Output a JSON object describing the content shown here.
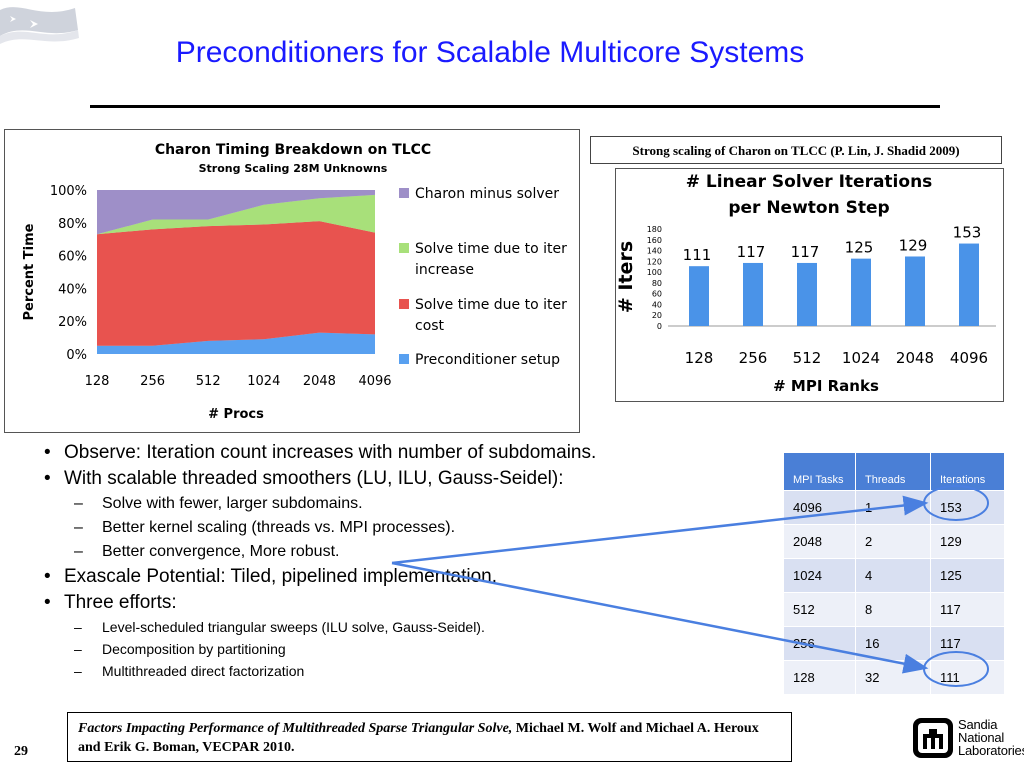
{
  "slide": {
    "title": "Preconditioners for Scalable Multicore Systems",
    "page_number": "29"
  },
  "colors": {
    "title": "#1a1aff",
    "charon_minus_solver": "#9e8fc8",
    "solve_iter_increase": "#a8e07a",
    "solve_iter_cost": "#e8534f",
    "preconditioner_setup": "#58a0f0",
    "bar_blue": "#4a93e8",
    "table_header": "#4a7fd6",
    "arrow": "#4a7fe0"
  },
  "strong_scaling_caption": "Strong scaling of Charon on TLCC (P. Lin, J. Shadid 2009)",
  "chart_data": [
    {
      "type": "area",
      "title": "Charon Timing Breakdown on TLCC",
      "subtitle": "Strong Scaling 28M Unknowns",
      "xlabel": "# Procs",
      "ylabel": "Percent Time",
      "categories": [
        "128",
        "256",
        "512",
        "1024",
        "2048",
        "4096"
      ],
      "yticks": [
        "0%",
        "20%",
        "40%",
        "60%",
        "80%",
        "100%"
      ],
      "ylim": [
        0,
        100
      ],
      "stacked": true,
      "series": [
        {
          "name": "Preconditioner setup",
          "values": [
            5,
            5,
            8,
            9,
            13,
            12
          ]
        },
        {
          "name": "Solve time due to iter cost",
          "values": [
            68,
            71,
            70,
            70,
            68,
            62
          ]
        },
        {
          "name": "Solve time due to iter increase",
          "values": [
            0,
            6,
            4,
            12,
            14,
            23
          ]
        },
        {
          "name": "Charon minus solver",
          "values": [
            27,
            18,
            18,
            9,
            5,
            3
          ]
        }
      ],
      "legend": "right"
    },
    {
      "type": "bar",
      "title_line1": "# Linear Solver Iterations",
      "title_line2": "per Newton Step",
      "xlabel": "# MPI Ranks",
      "ylabel": "# Iters",
      "categories": [
        "128",
        "256",
        "512",
        "1024",
        "2048",
        "4096"
      ],
      "values": [
        111,
        117,
        117,
        125,
        129,
        153
      ],
      "yticks": [
        "0",
        "20",
        "40",
        "60",
        "80",
        "100",
        "120",
        "140",
        "160",
        "180"
      ],
      "ylim": [
        0,
        180
      ]
    }
  ],
  "bullets": [
    {
      "level": 1,
      "text": "Observe: Iteration count increases with number of subdomains."
    },
    {
      "level": 1,
      "text": "With scalable threaded smoothers (LU, ILU, Gauss-Seidel):"
    },
    {
      "level": 2,
      "text": "Solve with fewer, larger subdomains."
    },
    {
      "level": 2,
      "text": "Better kernel scaling (threads vs. MPI processes)."
    },
    {
      "level": 2,
      "text": "Better convergence, More robust."
    },
    {
      "level": 1,
      "text": "Exascale Potential: Tiled, pipelined implementation."
    },
    {
      "level": 1,
      "text": "Three efforts:"
    },
    {
      "level": 3,
      "text": "Level-scheduled triangular sweeps (ILU solve, Gauss-Seidel)."
    },
    {
      "level": 3,
      "text": "Decomposition by partitioning"
    },
    {
      "level": 3,
      "text": "Multithreaded direct factorization"
    }
  ],
  "table": {
    "headers": [
      "MPI Tasks",
      "Threads",
      "Iterations"
    ],
    "rows": [
      [
        "4096",
        "1",
        "153"
      ],
      [
        "2048",
        "2",
        "129"
      ],
      [
        "1024",
        "4",
        "125"
      ],
      [
        "512",
        "8",
        "117"
      ],
      [
        "256",
        "16",
        "117"
      ],
      [
        "128",
        "32",
        "111"
      ]
    ]
  },
  "reference": {
    "italic": "Factors Impacting Performance of Multithreaded Sparse Triangular Solve,",
    "rest": " Michael M. Wolf and Michael A. Heroux and Erik G. Boman, VECPAR 2010."
  },
  "logo": {
    "name": "sandia-logo",
    "lines": [
      "Sandia",
      "National",
      "Laboratories"
    ]
  }
}
